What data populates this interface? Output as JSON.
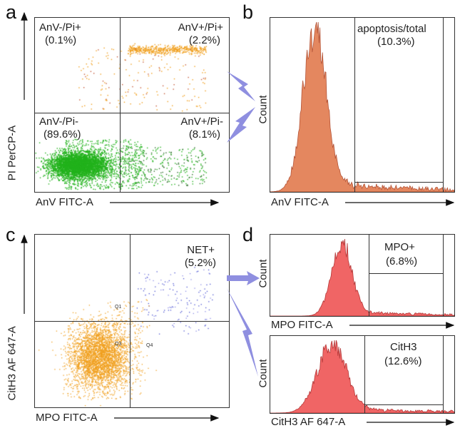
{
  "panels": {
    "a": "a",
    "b": "b",
    "c": "c",
    "d": "d"
  },
  "panel_a": {
    "x_label": "AnV FITC-A",
    "y_label": "PI PerCP-A",
    "quadrants": {
      "tl": {
        "name": "AnV-/Pi+",
        "pct": "(0.1%)"
      },
      "tr": {
        "name": "AnV+/Pi+",
        "pct": "(2.2%)"
      },
      "bl": {
        "name": "AnV-/Pi-",
        "pct": "(89.6%)"
      },
      "br": {
        "name": "AnV+/Pi-",
        "pct": "(8.1%)"
      }
    }
  },
  "panel_b": {
    "x_label": "AnV FITC-A",
    "y_label": "Count",
    "gate_name": "apoptosis/total",
    "gate_pct": "(10.3%)"
  },
  "panel_c": {
    "x_label": "MPO FITC-A",
    "y_label": "CitH3 AF 647-A",
    "gate_name": "NET+",
    "gate_pct": "(5.2%)",
    "quadrant_ids": {
      "q1": "Q1",
      "q3": "Q3",
      "q4": "Q4"
    }
  },
  "panel_d_top": {
    "x_label": "MPO FITC-A",
    "y_label": "Count",
    "gate_name": "MPO+",
    "gate_pct": "(6.8%)"
  },
  "panel_d_bottom": {
    "x_label": "CitH3 AF 647-A",
    "y_label": "Count",
    "gate_name": "CitH3",
    "gate_pct": "(12.6%)"
  },
  "colors": {
    "green": "#22b21c",
    "orange": "#f0a020",
    "blue": "#4a52d0",
    "salmon": "#e4875f",
    "red": "#f06565",
    "arrow": "#8f8fe0"
  }
}
